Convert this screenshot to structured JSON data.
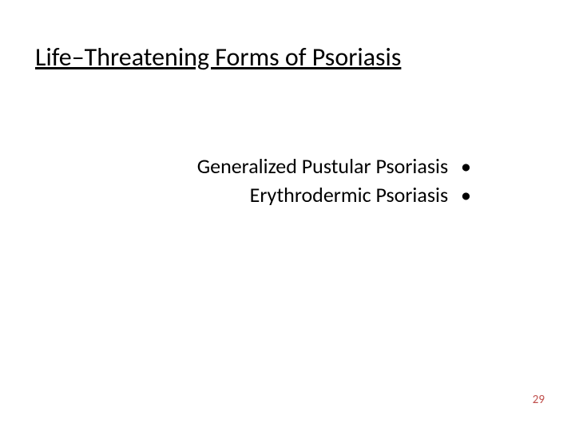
{
  "slide": {
    "title": "Life–Threatening Forms of Psoriasis",
    "title_fontsize": 32,
    "title_color": "#000000",
    "background_color": "#ffffff",
    "bullets": [
      {
        "text": "Generalized Pustular Psoriasis",
        "marker": "•"
      },
      {
        "text": "Erythrodermic Psoriasis",
        "marker": "•"
      }
    ],
    "bullet_fontsize": 26,
    "bullet_color": "#000000",
    "page_number": "29",
    "page_number_color": "#c0504d",
    "page_number_fontsize": 15
  }
}
